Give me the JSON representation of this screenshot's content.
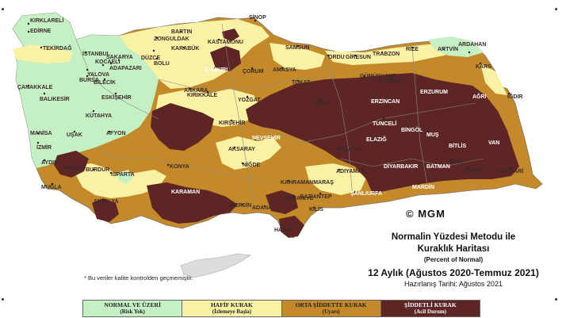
{
  "colors": {
    "normal": "#c4f0c4",
    "light": "#f9f1a3",
    "moderate": "#c48a2a",
    "severe": "#5e2525",
    "border": "#8a8a8a",
    "cyprus": "#dddddd"
  },
  "cities": [
    "KIRKLARELİ",
    "EDİRNE",
    "TEKİRDAĞ",
    "İSTANBUL",
    "YALOVA",
    "ÇANAKKALE",
    "BURSA",
    "BİLECİK",
    "BALIKESİR",
    "ESKİŞEHİR",
    "KÜTAHYA",
    "MANİSA",
    "İZMİR",
    "UŞAK",
    "AFYON",
    "AYDIN",
    "DENİZLİ",
    "MUĞLA",
    "BURDUR",
    "ISPARTA",
    "ANTALYA",
    "KONYA",
    "KARAMAN",
    "MERSİN",
    "ADANA",
    "OSMANİYE",
    "HATAY",
    "KİLİS",
    "GAZİANTEP",
    "ADIYAMAN",
    "ŞANLIURFA",
    "KAHRAMANMARAŞ",
    "MALATYA",
    "NİĞDE",
    "NEVŞEHİR",
    "AKSARAY",
    "KIRŞEHİR",
    "YOZGAT",
    "KIRIKKALE",
    "ANKARA",
    "ÇANKIRI",
    "KASTAMONU",
    "KARABÜK",
    "BARTIN",
    "ZONGULDAK",
    "DÜZCE",
    "BOLU",
    "SAKARYA",
    "ADAPAZARI",
    "KOCAELİ",
    "SİNOP",
    "SAMSUN",
    "AMASYA",
    "TOKAT",
    "ÇORUM",
    "ORDU",
    "GİRESUN",
    "TRABZON",
    "RİZE",
    "ARTVİN",
    "ARDAHAN",
    "KARS",
    "IĞDIR",
    "AĞRI",
    "ERZURUM",
    "BAYBURT",
    "GÜMÜŞHANE",
    "ERZİNCAN",
    "SİVAS",
    "TUNCELİ",
    "BİNGÖL",
    "ELAZIĞ",
    "MUŞ",
    "BİTLİS",
    "VAN",
    "HAKKARİ",
    "ŞIRNAK",
    "SİİRT",
    "BATMAN",
    "MARDİN",
    "DİYARBAKIR"
  ],
  "copyright": "© MGM",
  "title": {
    "line1": "Normalin Yüzdesi Metodu ile",
    "line2": "Kuraklık Haritası",
    "subtitle": "(Percent of Normal)",
    "period": "12 Aylık (Ağustos 2020-Temmuz 2021)",
    "prepared": "Hazırlanış Tarihi: Ağustos 2021"
  },
  "footnote": "* Bu veriler kalite kontrolden geçmemiştir.",
  "legend": [
    {
      "label": "NORMAL VE ÜZERİ",
      "sub": "(Risk Yok)",
      "color": "#c4f0c4"
    },
    {
      "label": "HAFİF KURAK",
      "sub": "(İzlemeye Başla)",
      "color": "#f9f1a3"
    },
    {
      "label": "ORTA ŞİDDETTE KURAK",
      "sub": "(Uyarı)",
      "color": "#c48a2a"
    },
    {
      "label": "ŞİDDETLİ KURAK",
      "sub": "(Acil Durum)",
      "color": "#5e2525"
    }
  ]
}
